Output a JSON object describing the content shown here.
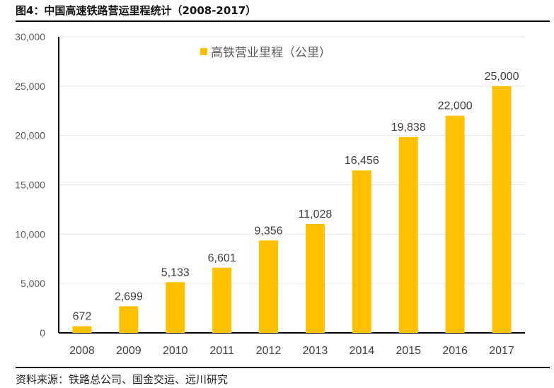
{
  "title": "图4：中国高速铁路营运里程统计（2008-2017）",
  "source": "资料来源：铁路总公司、国金交运、远川研究",
  "chart_data": {
    "type": "bar",
    "title": "",
    "xlabel": "",
    "ylabel": "",
    "categories": [
      "2008",
      "2009",
      "2010",
      "2011",
      "2012",
      "2013",
      "2014",
      "2015",
      "2016",
      "2017"
    ],
    "series": [
      {
        "name": "高铁营业里程（公里）",
        "values": [
          672,
          2699,
          5133,
          6601,
          9356,
          11028,
          16456,
          19838,
          22000,
          25000
        ],
        "color": "#FFC000"
      }
    ],
    "data_labels": [
      "672",
      "2,699",
      "5,133",
      "6,601",
      "9,356",
      "11,028",
      "16,456",
      "19,838",
      "22,000",
      "25,000"
    ],
    "ylim": [
      0,
      30000
    ],
    "yticks": [
      0,
      5000,
      10000,
      15000,
      20000,
      25000,
      30000
    ],
    "ytick_labels": [
      "0",
      "5,000",
      "10,000",
      "15,000",
      "20,000",
      "25,000",
      "30,000"
    ],
    "grid": true,
    "legend_position": "top-center"
  }
}
